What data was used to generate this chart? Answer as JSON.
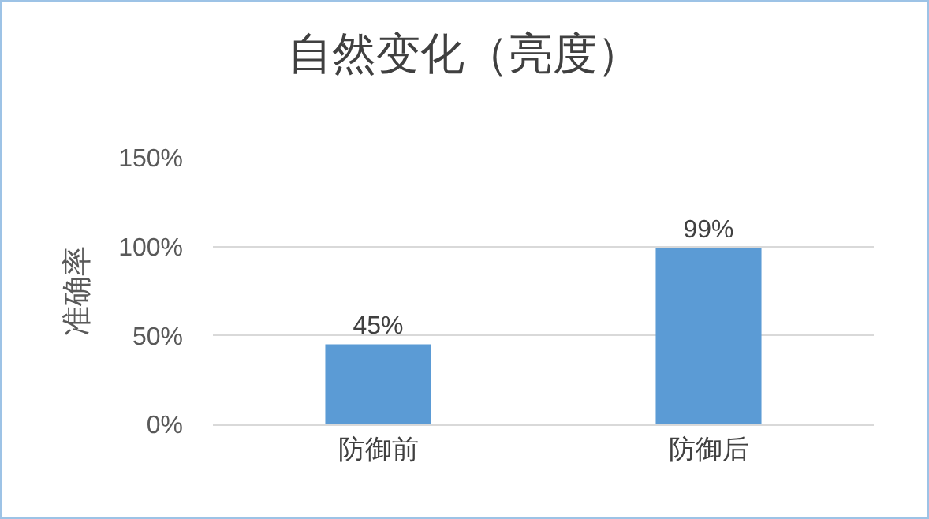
{
  "chart_data": {
    "type": "bar",
    "title": "自然变化（亮度）",
    "ylabel": "准确率",
    "categories": [
      "防御前",
      "防御后"
    ],
    "values": [
      45,
      99
    ],
    "value_labels": [
      "45%",
      "99%"
    ],
    "color": "#5b9bd5",
    "ylim": [
      0,
      150
    ],
    "yticks": [
      {
        "value": 0,
        "label": "0%"
      },
      {
        "value": 50,
        "label": "50%"
      },
      {
        "value": 100,
        "label": "100%"
      },
      {
        "value": 150,
        "label": "150%"
      }
    ],
    "grid": "y"
  }
}
